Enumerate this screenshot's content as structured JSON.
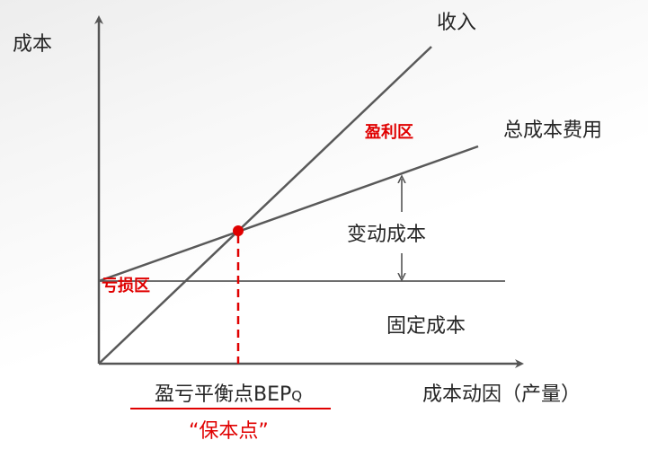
{
  "axes": {
    "y_label": "成本",
    "x_label": "成本动因（产量）"
  },
  "lines": {
    "revenue": "收入",
    "total_cost": "总成本费用",
    "fixed_cost": "固定成本",
    "variable_cost": "变动成本"
  },
  "zones": {
    "profit": "盈利区",
    "loss": "亏损区"
  },
  "break_even": {
    "label_main": "盈亏平衡点BEP",
    "label_sub": "Q",
    "nickname": "“保本点”"
  },
  "colors": {
    "axis": "#555555",
    "line": "#595959",
    "accent": "#e00000",
    "text": "#262626"
  }
}
